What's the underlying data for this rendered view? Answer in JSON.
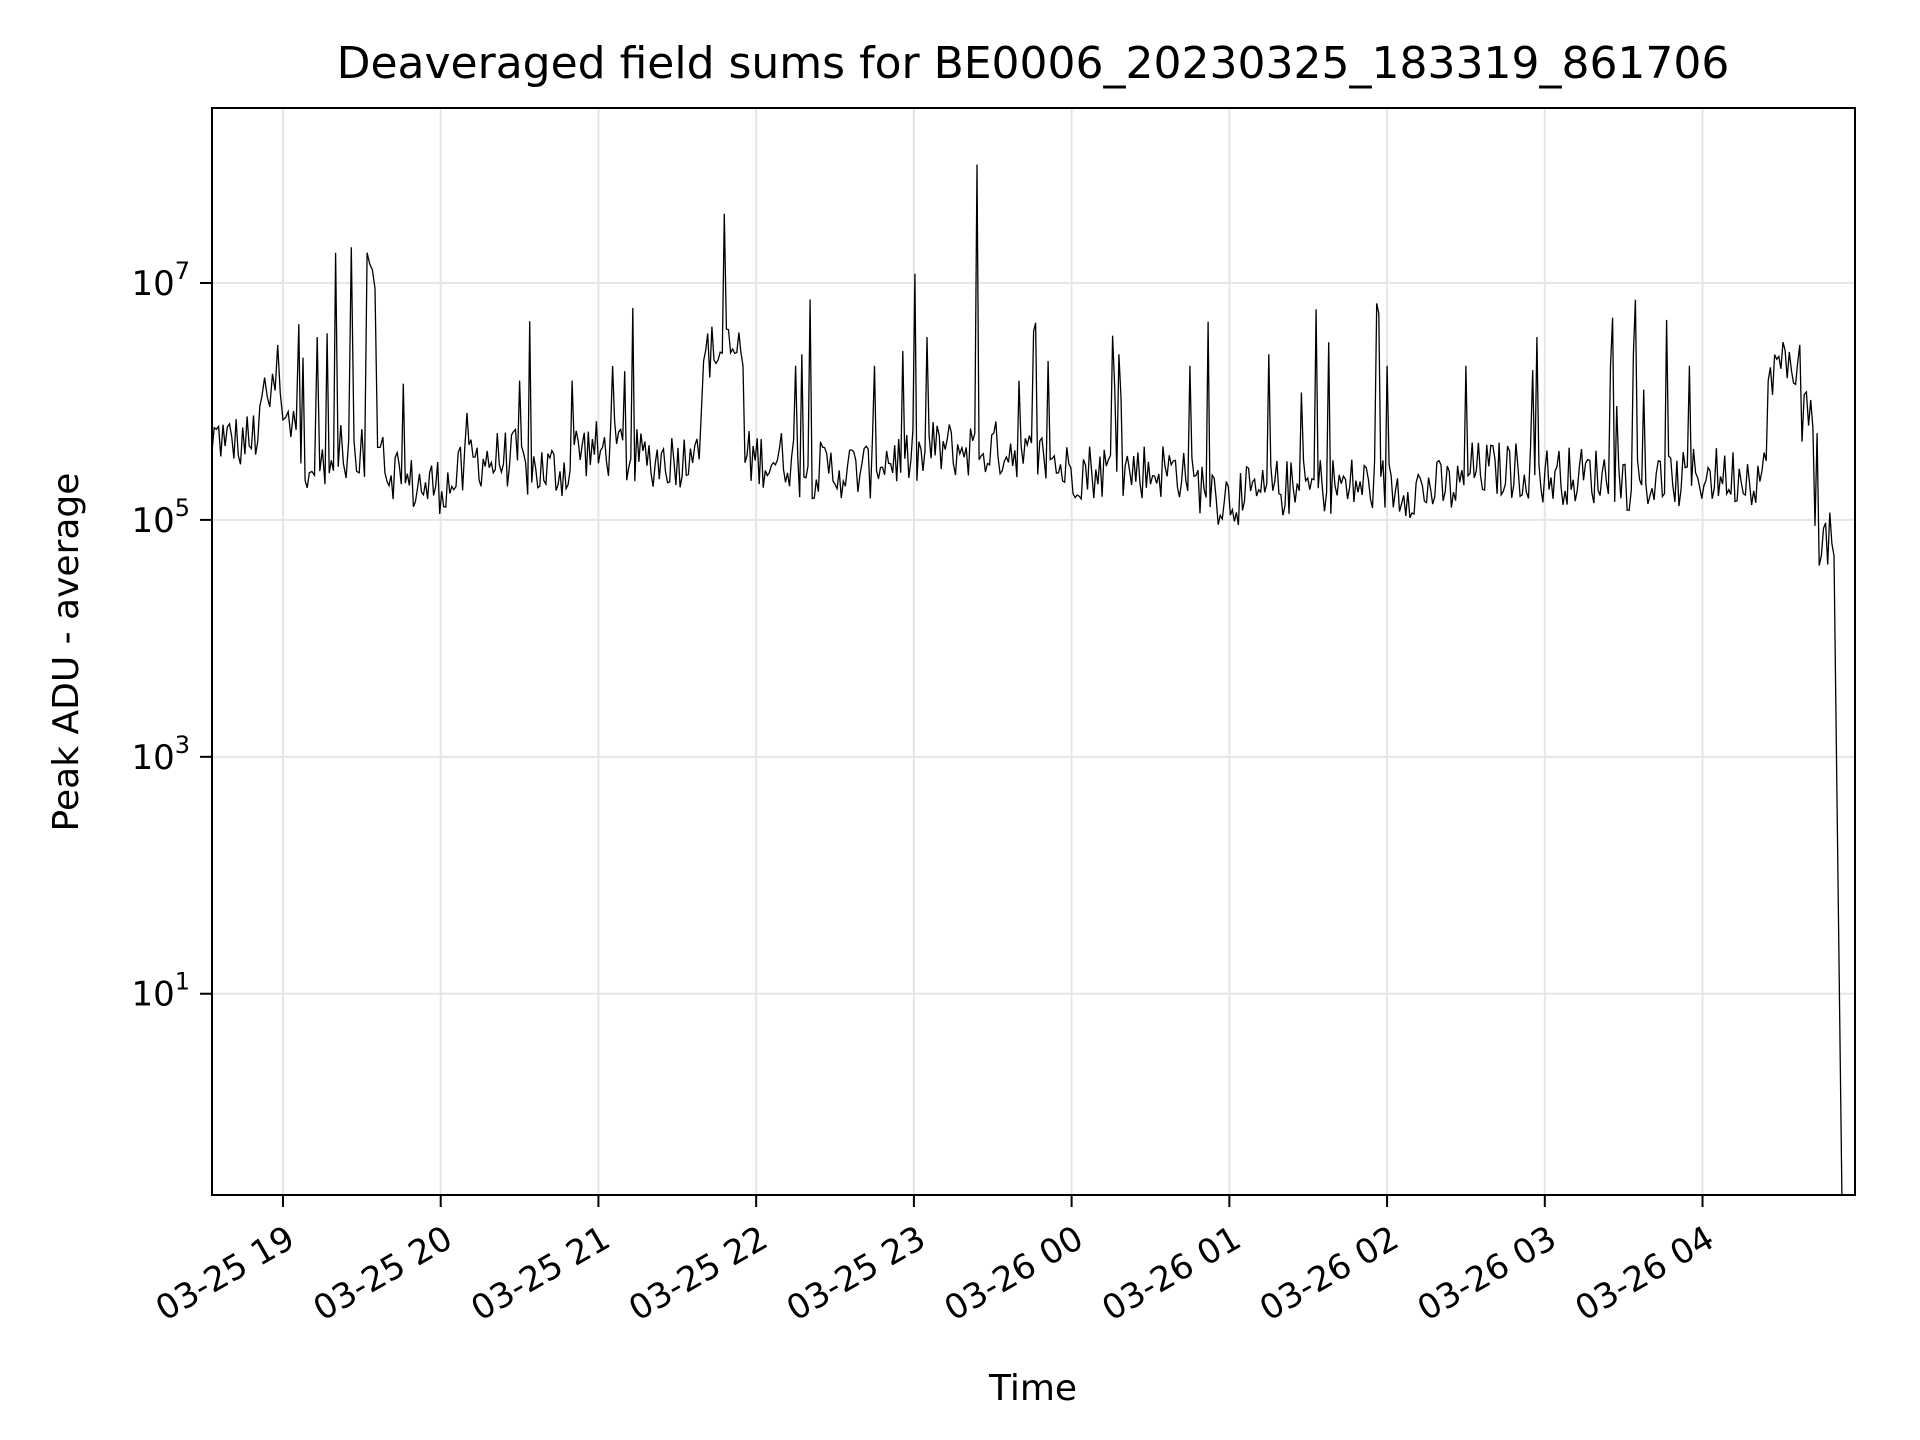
{
  "chart_data": {
    "type": "line",
    "title": "Deaveraged field sums for BE0006_20230325_183319_861706",
    "xlabel": "Time",
    "ylabel": "Peak ADU - average",
    "yscale": "log",
    "ylim": [
      0.2,
      300000000
    ],
    "xlim": [
      "2023-03-25 18:33",
      "2023-03-26 04:58"
    ],
    "grid": true,
    "colors": {
      "line": "#000000",
      "grid": "#e6e6e6",
      "axes": "#000000"
    },
    "xticks": [
      {
        "time": "2023-03-25 19:00",
        "label": "03-25 19"
      },
      {
        "time": "2023-03-25 20:00",
        "label": "03-25 20"
      },
      {
        "time": "2023-03-25 21:00",
        "label": "03-25 21"
      },
      {
        "time": "2023-03-25 22:00",
        "label": "03-25 22"
      },
      {
        "time": "2023-03-25 23:00",
        "label": "03-25 23"
      },
      {
        "time": "2023-03-26 00:00",
        "label": "03-26 00"
      },
      {
        "time": "2023-03-26 01:00",
        "label": "03-26 01"
      },
      {
        "time": "2023-03-26 02:00",
        "label": "03-26 02"
      },
      {
        "time": "2023-03-26 03:00",
        "label": "03-26 03"
      },
      {
        "time": "2023-03-26 04:00",
        "label": "03-26 04"
      }
    ],
    "yticks": [
      {
        "value": 10,
        "base": "10",
        "exp": "1"
      },
      {
        "value": 1000,
        "base": "10",
        "exp": "3"
      },
      {
        "value": 100000,
        "base": "10",
        "exp": "5"
      },
      {
        "value": 10000000,
        "base": "10",
        "exp": "7"
      }
    ],
    "series": [
      {
        "points": [
          [
            "2023-03-25 18:33",
            380000
          ],
          [
            "2023-03-25 18:38",
            420000
          ],
          [
            "2023-03-25 18:43",
            350000
          ],
          [
            "2023-03-25 18:48",
            400000
          ],
          [
            "2023-03-25 18:52",
            1100000
          ],
          [
            "2023-03-25 18:55",
            900000
          ],
          [
            "2023-03-25 18:58",
            3000000
          ],
          [
            "2023-03-25 19:00",
            700000
          ],
          [
            "2023-03-25 19:03",
            500000
          ],
          [
            "2023-03-25 19:06",
            4500000
          ],
          [
            "2023-03-25 19:10",
            250000
          ],
          [
            "2023-03-25 19:13",
            3500000
          ],
          [
            "2023-03-25 19:16",
            200000
          ],
          [
            "2023-03-25 19:20",
            18000000
          ],
          [
            "2023-03-25 19:23",
            300000
          ],
          [
            "2023-03-25 19:26",
            20000000
          ],
          [
            "2023-03-25 19:29",
            250000
          ],
          [
            "2023-03-25 19:32",
            18000000
          ],
          [
            "2023-03-25 19:35",
            9000000
          ],
          [
            "2023-03-25 19:38",
            500000
          ],
          [
            "2023-03-25 19:45",
            200000
          ],
          [
            "2023-03-25 19:55",
            150000
          ],
          [
            "2023-03-25 20:05",
            180000
          ],
          [
            "2023-03-25 20:10",
            800000
          ],
          [
            "2023-03-25 20:20",
            250000
          ],
          [
            "2023-03-25 20:30",
            1500000
          ],
          [
            "2023-03-25 20:40",
            200000
          ],
          [
            "2023-03-25 20:50",
            1500000
          ],
          [
            "2023-03-25 21:00",
            300000
          ],
          [
            "2023-03-25 21:10",
            1800000
          ],
          [
            "2023-03-25 21:20",
            250000
          ],
          [
            "2023-03-25 21:35",
            400000
          ],
          [
            "2023-03-25 21:40",
            2200000
          ],
          [
            "2023-03-25 21:55",
            2000000
          ],
          [
            "2023-03-25 22:05",
            250000
          ],
          [
            "2023-03-25 22:15",
            2000000
          ],
          [
            "2023-03-25 22:30",
            200000
          ],
          [
            "2023-03-25 22:45",
            2000000
          ],
          [
            "2023-03-25 22:55",
            250000
          ],
          [
            "2023-03-25 23:05",
            3500000
          ],
          [
            "2023-03-25 23:15",
            300000
          ],
          [
            "2023-03-25 23:24",
            100000000
          ],
          [
            "2023-03-25 23:28",
            300000
          ],
          [
            "2023-03-25 23:40",
            1500000
          ],
          [
            "2023-03-25 23:55",
            250000
          ],
          [
            "2023-03-26 00:10",
            200000
          ],
          [
            "2023-03-26 00:18",
            2500000
          ],
          [
            "2023-03-26 00:30",
            200000
          ],
          [
            "2023-03-26 00:45",
            2000000
          ],
          [
            "2023-03-26 00:55",
            150000
          ],
          [
            "2023-03-26 01:05",
            120000
          ],
          [
            "2023-03-26 01:15",
            2500000
          ],
          [
            "2023-03-26 01:25",
            140000
          ],
          [
            "2023-03-26 01:33",
            6000000
          ],
          [
            "2023-03-26 01:45",
            150000
          ],
          [
            "2023-03-26 02:00",
            2000000
          ],
          [
            "2023-03-26 02:15",
            140000
          ],
          [
            "2023-03-26 02:30",
            2000000
          ],
          [
            "2023-03-26 02:45",
            200000
          ],
          [
            "2023-03-26 02:57",
            3500000
          ],
          [
            "2023-03-26 03:10",
            180000
          ],
          [
            "2023-03-26 03:25",
            2000000
          ],
          [
            "2023-03-26 03:40",
            160000
          ],
          [
            "2023-03-26 03:55",
            2000000
          ],
          [
            "2023-03-26 04:10",
            180000
          ],
          [
            "2023-03-26 04:25",
            1500000
          ],
          [
            "2023-03-26 04:37",
            3000000
          ],
          [
            "2023-03-26 04:42",
            600000
          ],
          [
            "2023-03-26 04:50",
            50000
          ],
          [
            "2023-03-26 04:53",
            0.2
          ]
        ]
      }
    ]
  }
}
